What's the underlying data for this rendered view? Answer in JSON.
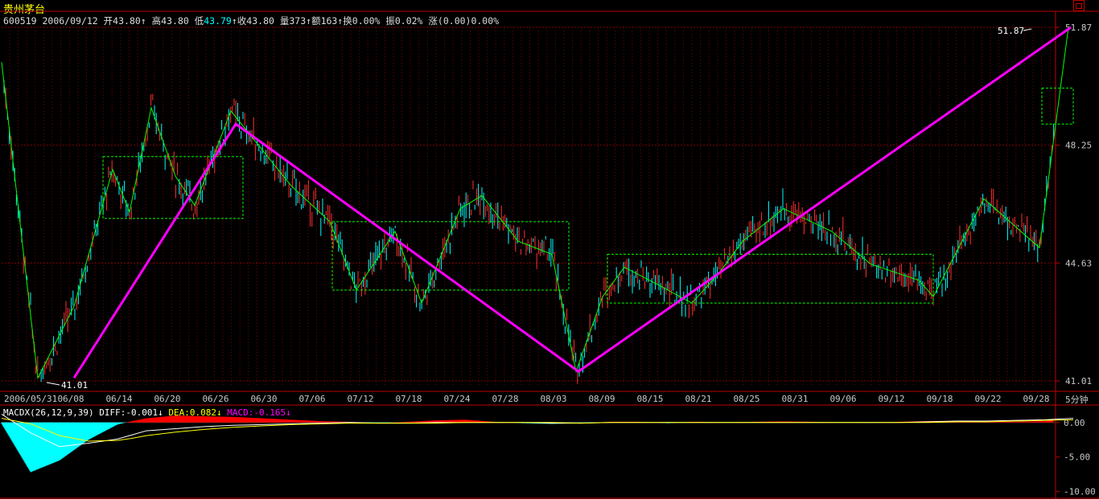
{
  "window": {
    "title": "贵州茅台",
    "restore_icon": "restore-window-icon"
  },
  "quote": {
    "code": "600519",
    "date": "2006/09/12",
    "open_label": "开",
    "open": "43.80",
    "open_arrow": "↑",
    "high_label": "高",
    "high": "43.80",
    "low_label": "低",
    "low": "43.79",
    "low_arrow": "↑",
    "close_label": "收",
    "close": "43.80",
    "vol_label": "量",
    "vol": "373",
    "vol_arrow": "↑",
    "amt_label": "额",
    "amt": "163",
    "amt_arrow": "↑",
    "turnover_label": "换",
    "turnover": "0.00%",
    "amp_label": "振",
    "amp": "0.02%",
    "chg_label": "涨",
    "chg": "(0.00)0.00%"
  },
  "macd": {
    "name": "MACDX(26,12,9,39)",
    "diff_label": "DIFF:",
    "diff": "-0.001",
    "diff_arrow": "↓",
    "dea_label": "DEA:",
    "dea": "0.082",
    "dea_arrow": "↓",
    "macd_label": "MACD:",
    "macd": "-0.165",
    "macd_arrow": "↓"
  },
  "period_label": "5分钟",
  "chart_data": [
    {
      "type": "candlestick",
      "x_ticks": [
        "2006/05/31",
        "06/08",
        "06/14",
        "06/20",
        "06/26",
        "06/30",
        "07/06",
        "07/12",
        "07/18",
        "07/24",
        "07/28",
        "08/03",
        "08/09",
        "08/15",
        "08/21",
        "08/25",
        "08/31",
        "09/06",
        "09/12",
        "09/18",
        "09/22",
        "09/28"
      ],
      "y_ticks": [
        41.01,
        44.63,
        48.25,
        51.87
      ],
      "ylim": [
        41.01,
        51.87
      ],
      "annotations": [
        {
          "label": "41.01",
          "x": "06/08",
          "y": 41.01
        },
        {
          "label": "51.87",
          "x": "09/28",
          "y": 51.87
        }
      ],
      "trend_line": [
        [
          0.0,
          50.8
        ],
        [
          0.75,
          41.1
        ],
        [
          1.5,
          43.3
        ],
        [
          2.3,
          47.5
        ],
        [
          2.65,
          46.2
        ],
        [
          3.1,
          49.4
        ],
        [
          3.6,
          47.3
        ],
        [
          4.0,
          46.4
        ],
        [
          4.75,
          49.3
        ],
        [
          6.0,
          47.0
        ],
        [
          6.8,
          45.9
        ],
        [
          7.35,
          43.8
        ],
        [
          8.15,
          45.6
        ],
        [
          8.7,
          43.4
        ],
        [
          9.5,
          46.3
        ],
        [
          9.95,
          46.7
        ],
        [
          10.7,
          45.3
        ],
        [
          11.4,
          44.9
        ],
        [
          11.9,
          41.3
        ],
        [
          12.45,
          43.6
        ],
        [
          12.9,
          44.5
        ],
        [
          13.55,
          44.0
        ],
        [
          14.3,
          43.4
        ],
        [
          14.85,
          44.3
        ],
        [
          15.35,
          45.3
        ],
        [
          16.2,
          46.3
        ],
        [
          17.2,
          45.6
        ],
        [
          18.0,
          44.6
        ],
        [
          19.0,
          44.1
        ],
        [
          19.3,
          43.6
        ],
        [
          20.35,
          46.6
        ],
        [
          21.5,
          45.1
        ],
        [
          22.1,
          51.87
        ]
      ],
      "wave_line": [
        [
          1.5,
          41.1
        ],
        [
          4.85,
          48.9
        ],
        [
          11.95,
          41.3
        ],
        [
          22.15,
          51.87
        ]
      ],
      "boxes": [
        {
          "x": [
            2.1,
            5.0
          ],
          "y": [
            46.0,
            47.9
          ]
        },
        {
          "x": [
            6.85,
            11.75
          ],
          "y": [
            43.8,
            45.9
          ]
        },
        {
          "x": [
            12.55,
            19.3
          ],
          "y": [
            43.4,
            44.9
          ]
        },
        {
          "x": [
            21.55,
            22.2
          ],
          "y": [
            48.9,
            50.0
          ]
        }
      ]
    },
    {
      "type": "bar",
      "title": "MACDX(26,12,9,39)",
      "y_ticks": [
        0.0,
        -5.0,
        -10.0
      ],
      "ylim": [
        -10.5,
        1.6
      ],
      "histogram_x": [
        0.0,
        0.6,
        1.2,
        1.8,
        2.4,
        2.7,
        3.0,
        3.6,
        4.2,
        4.8,
        5.4,
        6.0,
        6.6,
        7.2,
        7.8,
        8.4,
        9.0,
        9.6,
        10.2,
        10.8,
        11.4,
        12.0,
        12.6,
        13.2,
        13.8,
        14.4,
        15.0,
        15.6,
        16.2,
        16.8,
        17.4,
        18.0,
        18.6,
        19.2,
        19.8,
        20.4,
        21.0,
        21.6,
        22.2
      ],
      "histogram": [
        -0.2,
        -7.2,
        -5.5,
        -2.5,
        -0.3,
        0.2,
        0.6,
        1.0,
        0.9,
        0.8,
        0.6,
        0.4,
        0.2,
        0.1,
        -0.1,
        0.1,
        0.3,
        0.4,
        0.1,
        -0.1,
        -0.2,
        -0.1,
        0.1,
        0.1,
        -0.1,
        0.1,
        0.0,
        0.1,
        0.15,
        0.1,
        0.0,
        -0.05,
        0.1,
        0.2,
        0.25,
        0.2,
        0.1,
        0.2,
        0.6
      ],
      "dif": [
        1.2,
        -1.5,
        -3.5,
        -3.0,
        -2.4,
        -1.8,
        -1.2,
        -0.9,
        -0.6,
        -0.4,
        -0.3,
        -0.2,
        -0.1,
        0.0,
        -0.1,
        -0.1,
        0.0,
        0.0,
        0.0,
        0.0,
        -0.1,
        -0.1,
        0.0,
        0.0,
        0.0,
        0.0,
        0.0,
        0.0,
        0.0,
        0.0,
        0.0,
        0.0,
        0.0,
        0.1,
        0.2,
        0.2,
        0.3,
        0.4,
        0.6
      ],
      "dea": [
        0.6,
        -0.2,
        -1.9,
        -2.7,
        -2.6,
        -2.3,
        -1.9,
        -1.4,
        -1.0,
        -0.7,
        -0.5,
        -0.3,
        -0.2,
        -0.1,
        -0.1,
        -0.1,
        -0.1,
        0.0,
        0.0,
        0.0,
        0.0,
        -0.1,
        0.0,
        0.0,
        0.0,
        0.0,
        0.0,
        0.0,
        0.0,
        0.0,
        0.0,
        0.0,
        0.0,
        0.0,
        0.1,
        0.1,
        0.2,
        0.3,
        0.4
      ]
    }
  ],
  "colors": {
    "up": "#ff3030",
    "down": "#00ffff",
    "trend": "#00ff00",
    "wave": "#ff00ff",
    "box": "#00ff00",
    "grid": "#800000",
    "axis": "#c00000",
    "hist_pos": "#ff0000",
    "hist_neg": "#00ffff",
    "dif": "#ffffff",
    "dea": "#ffff00"
  }
}
